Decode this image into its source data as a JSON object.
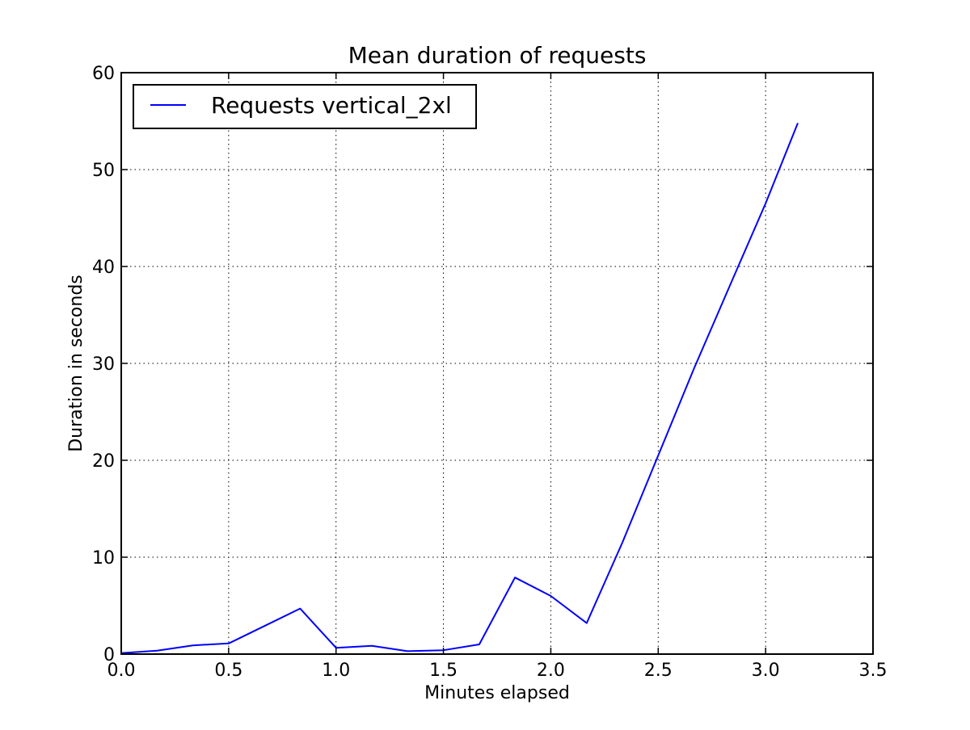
{
  "chart_data": {
    "type": "line",
    "title": "Mean duration of requests",
    "xlabel": "Minutes elapsed",
    "ylabel": "Duration in seconds",
    "xlim": [
      0.0,
      3.5
    ],
    "ylim": [
      0,
      60
    ],
    "xticks": [
      0.0,
      0.5,
      1.0,
      1.5,
      2.0,
      2.5,
      3.0,
      3.5
    ],
    "xtick_labels": [
      "0.0",
      "0.5",
      "1.0",
      "1.5",
      "2.0",
      "2.5",
      "3.0",
      "3.5"
    ],
    "yticks": [
      0,
      10,
      20,
      30,
      40,
      50,
      60
    ],
    "ytick_labels": [
      "0",
      "10",
      "20",
      "30",
      "40",
      "50",
      "60"
    ],
    "grid": true,
    "legend_position": "top-left",
    "series": [
      {
        "name": "Requests vertical_2xl",
        "color": "#0000ff",
        "x": [
          0.0,
          0.167,
          0.333,
          0.5,
          0.667,
          0.833,
          1.0,
          1.167,
          1.333,
          1.5,
          1.667,
          1.833,
          2.0,
          2.167,
          2.333,
          2.5,
          2.667,
          2.833,
          3.0,
          3.15
        ],
        "y": [
          0.1,
          0.35,
          0.9,
          1.1,
          2.9,
          4.7,
          0.65,
          0.85,
          0.3,
          0.4,
          1.0,
          7.9,
          6.0,
          3.2,
          11.5,
          20.5,
          29.5,
          38.0,
          46.5,
          54.8
        ]
      }
    ]
  }
}
